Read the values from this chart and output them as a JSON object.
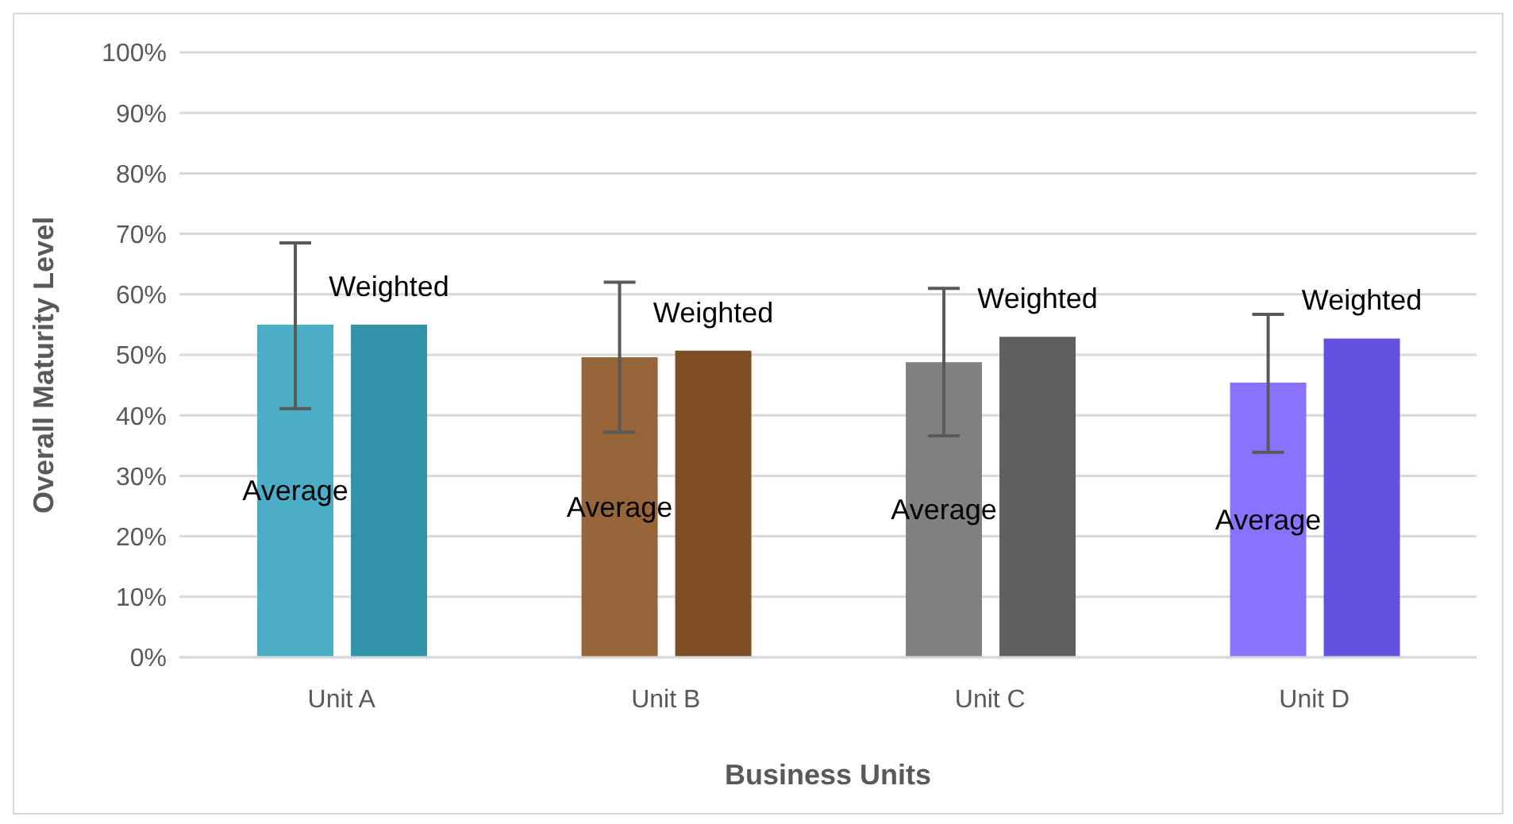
{
  "chart_data": {
    "type": "bar",
    "xlabel": "Business Units",
    "ylabel": "Overall Maturity Level",
    "categories": [
      "Unit A",
      "Unit B",
      "Unit C",
      "Unit D"
    ],
    "series": [
      {
        "name": "Average",
        "colors": [
          "#4badc6",
          "#98643a",
          "#808080",
          "#8a72ff"
        ],
        "values": [
          55,
          49.6,
          48.8,
          45.4
        ],
        "errors": [
          [
            41.1,
            68.5
          ],
          [
            37.2,
            62
          ],
          [
            36.6,
            61
          ],
          [
            33.9,
            56.7
          ]
        ]
      },
      {
        "name": "Weighted",
        "colors": [
          "#3192a8",
          "#7d4e24",
          "#5f5f5f",
          "#6352e0"
        ],
        "values": [
          55,
          50.7,
          53,
          52.7
        ]
      }
    ],
    "ylim": [
      0,
      100
    ],
    "yticks": [
      {
        "value": 0,
        "label": "0%"
      },
      {
        "value": 10,
        "label": "10%"
      },
      {
        "value": 20,
        "label": "20%"
      },
      {
        "value": 30,
        "label": "30%"
      },
      {
        "value": 40,
        "label": "40%"
      },
      {
        "value": 50,
        "label": "50%"
      },
      {
        "value": 60,
        "label": "60%"
      },
      {
        "value": 70,
        "label": "70%"
      },
      {
        "value": 80,
        "label": "80%"
      },
      {
        "value": 90,
        "label": "90%"
      },
      {
        "value": 100,
        "label": "100%"
      }
    ],
    "grid": "y"
  }
}
